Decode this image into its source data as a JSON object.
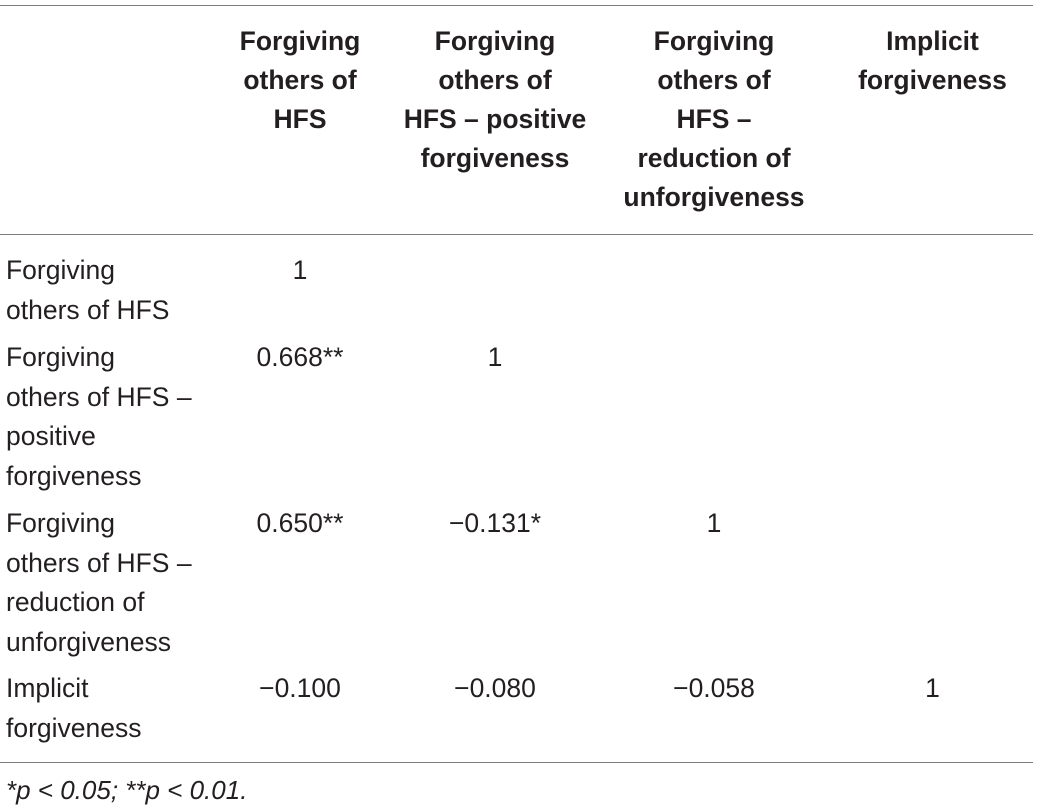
{
  "table": {
    "columns": [
      "Forgiving\nothers of\nHFS",
      "Forgiving\nothers of\nHFS – positive\nforgiveness",
      "Forgiving\nothers of\nHFS –\nreduction of\nunforgiveness",
      "Implicit\nforgiveness"
    ],
    "rows": [
      {
        "label": "Forgiving\nothers of HFS",
        "cells": [
          "1",
          "",
          "",
          ""
        ]
      },
      {
        "label": "Forgiving\nothers of HFS –\npositive\nforgiveness",
        "cells": [
          "0.668**",
          "1",
          "",
          ""
        ]
      },
      {
        "label": "Forgiving\nothers of HFS –\nreduction of\nunforgiveness",
        "cells": [
          "0.650**",
          "−0.131*",
          "1",
          ""
        ]
      },
      {
        "label": "Implicit\nforgiveness",
        "cells": [
          "−0.100",
          "−0.080",
          "−0.058",
          "1"
        ]
      }
    ]
  },
  "footnote": "*p < 0.05; **p < 0.01."
}
